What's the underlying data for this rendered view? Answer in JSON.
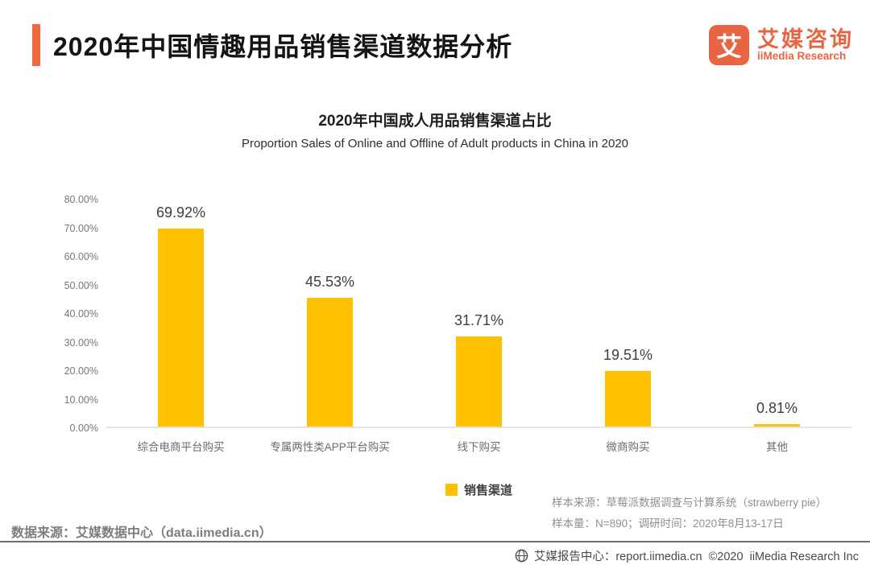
{
  "header": {
    "title": "2020年中国情趣用品销售渠道数据分析",
    "logo": {
      "glyph": "艾",
      "brand_cn": "艾媒咨询",
      "brand_en": "iiMedia Research"
    }
  },
  "chart_data": {
    "type": "bar",
    "title": "2020年中国成人用品销售渠道占比",
    "subtitle": "Proportion Sales of Online and Offline of Adult products in China in 2020",
    "categories": [
      "综合电商平台购买",
      "专属两性类APP平台购买",
      "线下购买",
      "微商购买",
      "其他"
    ],
    "values": [
      69.92,
      45.53,
      31.71,
      19.51,
      0.81
    ],
    "value_labels": [
      "69.92%",
      "45.53%",
      "31.71%",
      "19.51%",
      "0.81%"
    ],
    "ylim": [
      0,
      80
    ],
    "y_ticks": [
      "0.00%",
      "10.00%",
      "20.00%",
      "30.00%",
      "40.00%",
      "50.00%",
      "60.00%",
      "70.00%",
      "80.00%"
    ],
    "grid": false,
    "legend_position": "bottom",
    "legend": [
      {
        "label": "销售渠道",
        "color": "#FFC000"
      }
    ],
    "bar_color": "#FFC000"
  },
  "notes": {
    "line1": "样本来源：草莓派数据调查与计算系统（strawberry pie）",
    "line2": "样本量：N=890；调研时间：2020年8月13-17日"
  },
  "source": "数据来源：艾媒数据中心（data.iimedia.cn）",
  "footer": {
    "text": "艾媒报告中心：report.iimedia.cn  ©2020  iiMedia Research Inc"
  },
  "colors": {
    "accent_orange": "#F0693C",
    "logo_orange": "#E86442",
    "bar_yellow": "#FFC000",
    "axis_gray": "#777777"
  }
}
